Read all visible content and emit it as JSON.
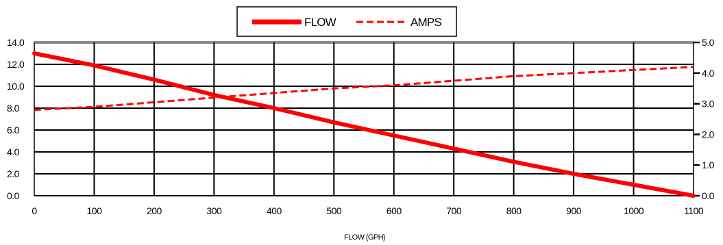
{
  "chart_data": {
    "type": "line",
    "xlabel": "FLOW (GPH)",
    "x": [
      0,
      100,
      200,
      300,
      400,
      500,
      600,
      700,
      800,
      900,
      1000,
      1100
    ],
    "xlim": [
      0,
      1100
    ],
    "y_left": {
      "ylim": [
        0,
        14
      ],
      "ticks": [
        "0.0",
        "2.0",
        "4.0",
        "6.0",
        "8.0",
        "10.0",
        "12.0",
        "14.0"
      ]
    },
    "y_right": {
      "ylim": [
        0,
        5
      ],
      "ticks": [
        "0.0",
        "1.0",
        "2.0",
        "3.0",
        "4.0",
        "5.0"
      ]
    },
    "x_ticks": [
      "0",
      "100",
      "200",
      "300",
      "400",
      "500",
      "600",
      "700",
      "800",
      "900",
      "1000",
      "1100"
    ],
    "grid": true,
    "legend": {
      "placement": "top-center"
    },
    "series": [
      {
        "name": "FLOW",
        "axis": "left",
        "style": "solid",
        "color": "#ff0000",
        "values": [
          13.0,
          11.9,
          10.6,
          9.2,
          8.0,
          6.7,
          5.5,
          4.3,
          3.1,
          2.0,
          1.0,
          0.0
        ]
      },
      {
        "name": "AMPS",
        "axis": "right",
        "style": "dashed",
        "color": "#ff0000",
        "values": [
          2.8,
          2.9,
          3.05,
          3.2,
          3.35,
          3.5,
          3.6,
          3.75,
          3.9,
          4.0,
          4.1,
          4.2
        ]
      }
    ]
  }
}
